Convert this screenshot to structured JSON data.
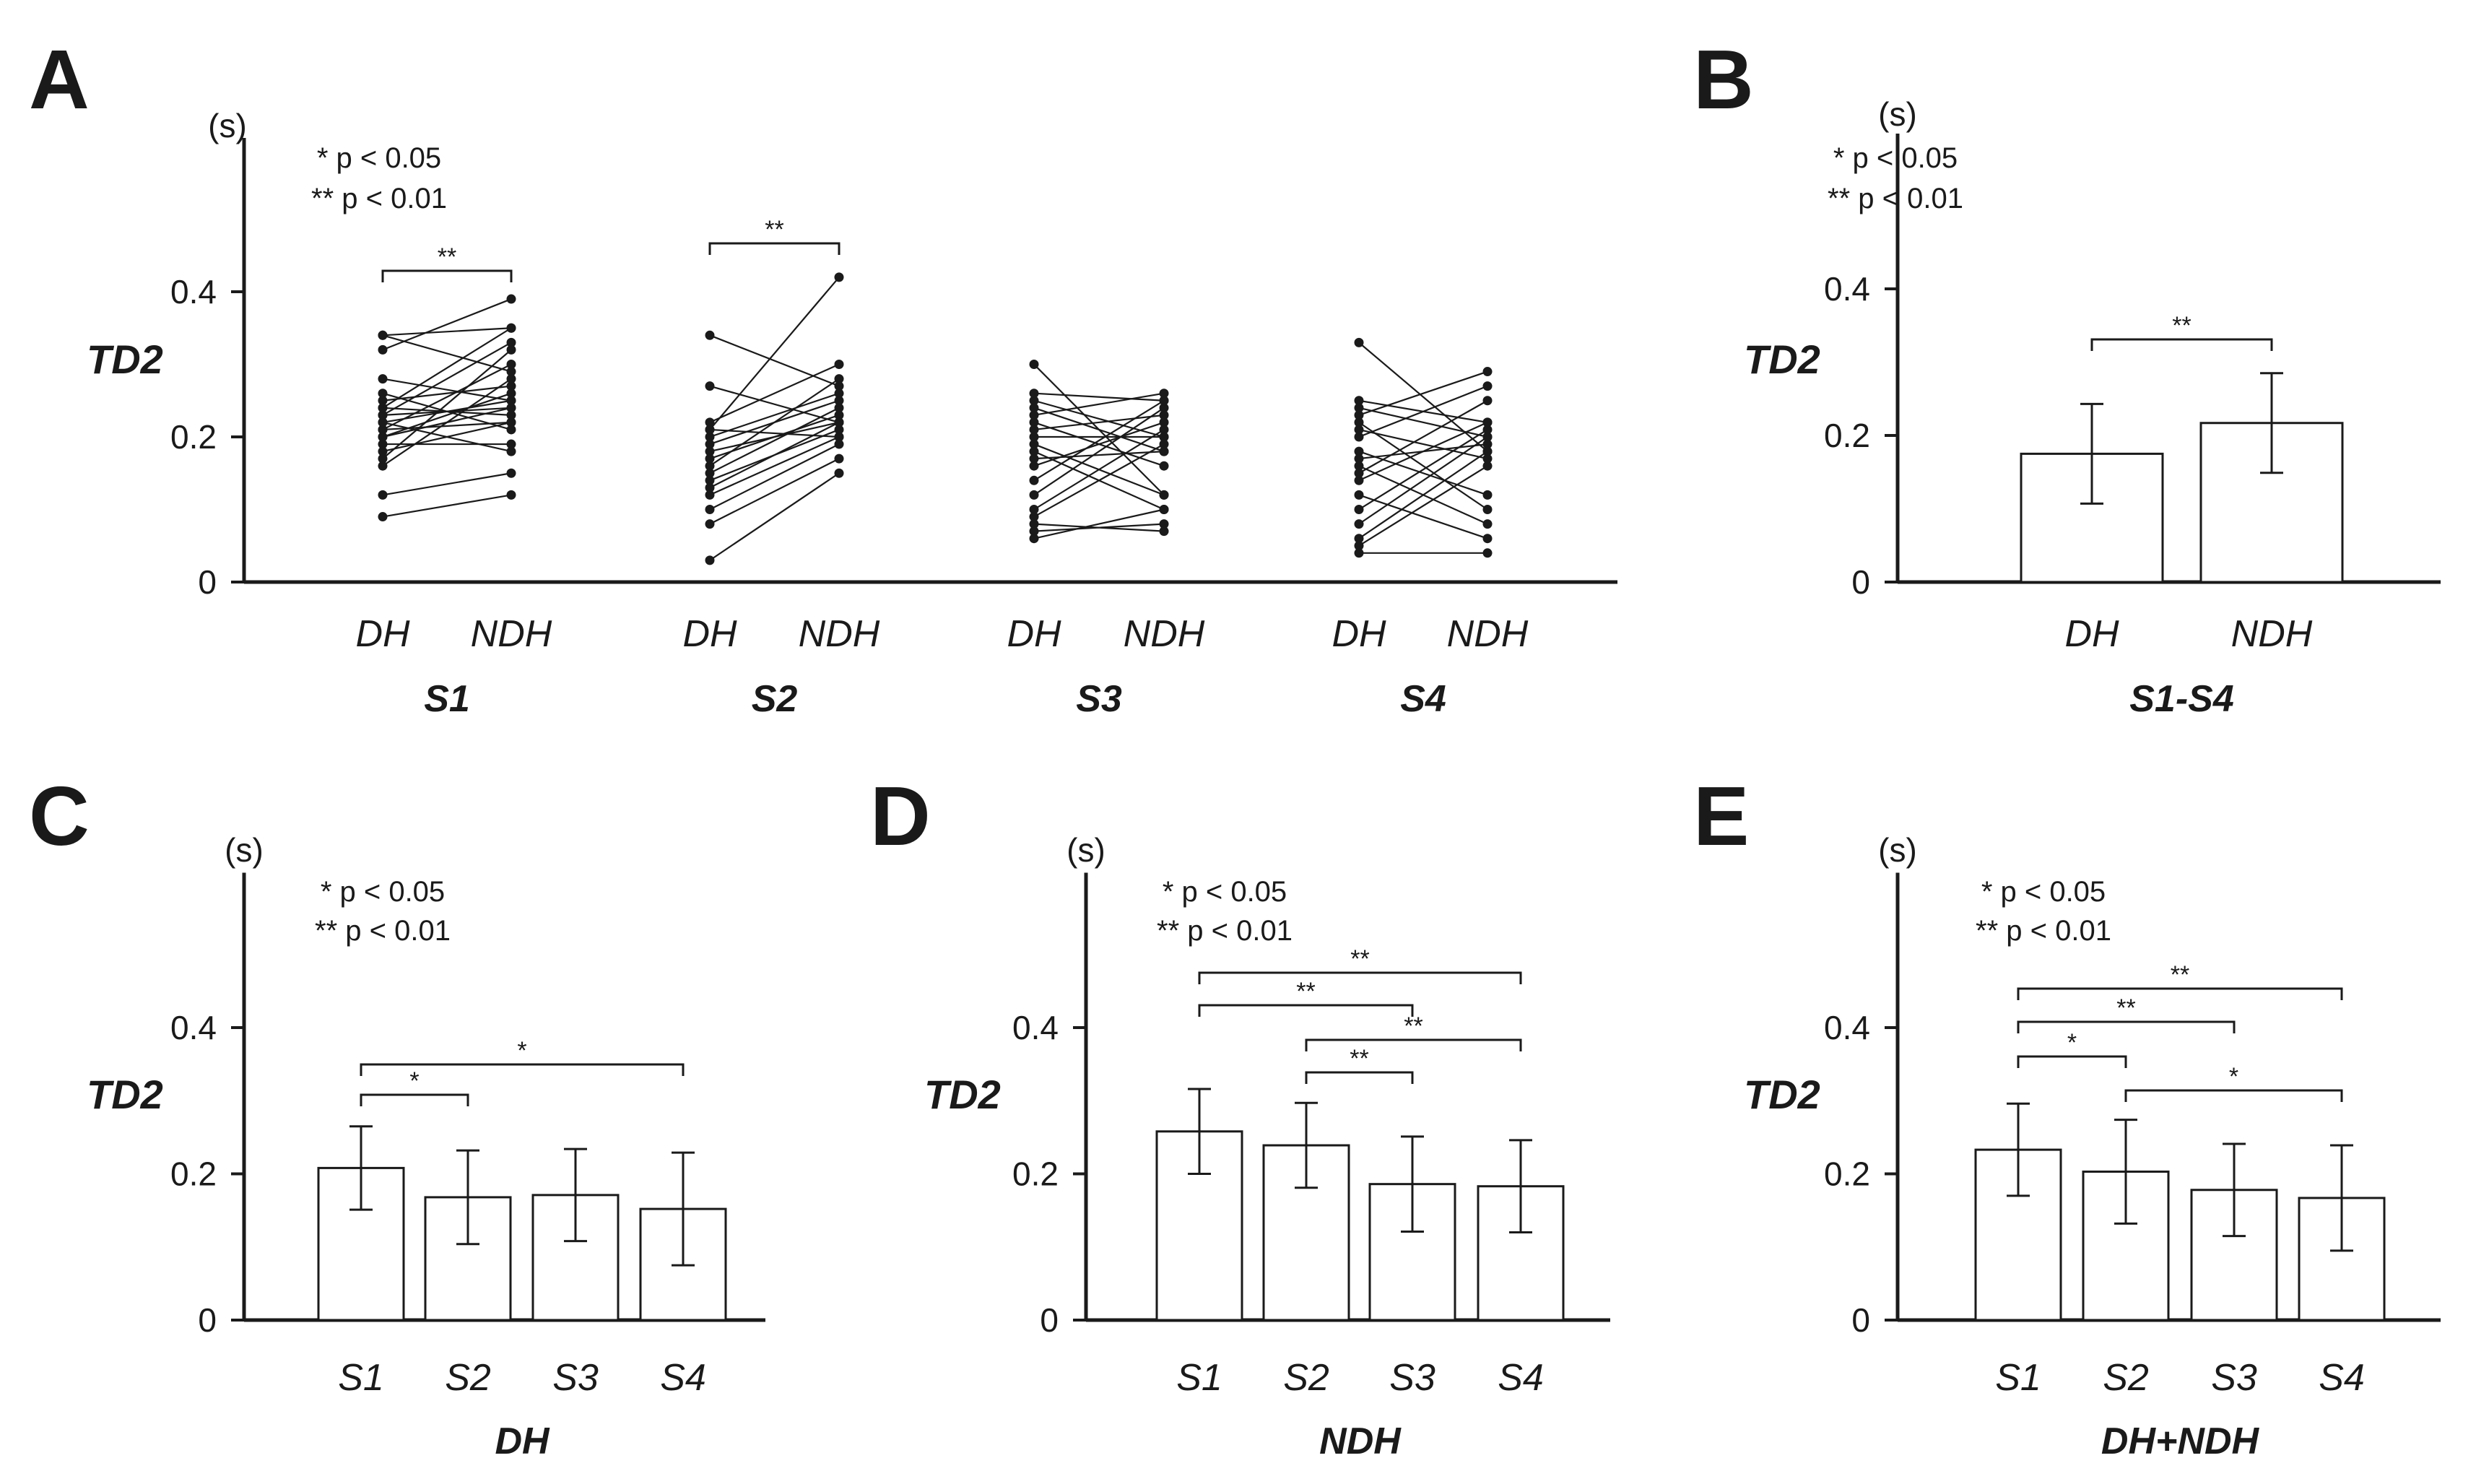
{
  "chart_data": [
    {
      "panel": "A",
      "type": "scatter",
      "subtype": "paired-line plot",
      "ylabel": "TD2",
      "yunit": "(s)",
      "ylim": [
        0,
        0.6
      ],
      "yticks": [
        "0",
        "0.2",
        "0.4"
      ],
      "ytick_values": [
        0,
        0.2,
        0.4
      ],
      "legend": [
        "* p < 0.05",
        "** p < 0.01"
      ],
      "groups": [
        {
          "name": "S1",
          "conditions": [
            "DH",
            "NDH"
          ],
          "pairs": [
            [
              0.09,
              0.12
            ],
            [
              0.12,
              0.15
            ],
            [
              0.16,
              0.28
            ],
            [
              0.17,
              0.32
            ],
            [
              0.18,
              0.22
            ],
            [
              0.19,
              0.19
            ],
            [
              0.2,
              0.24
            ],
            [
              0.2,
              0.26
            ],
            [
              0.21,
              0.22
            ],
            [
              0.21,
              0.3
            ],
            [
              0.22,
              0.25
            ],
            [
              0.22,
              0.18
            ],
            [
              0.23,
              0.24
            ],
            [
              0.23,
              0.33
            ],
            [
              0.24,
              0.23
            ],
            [
              0.24,
              0.35
            ],
            [
              0.25,
              0.27
            ],
            [
              0.26,
              0.21
            ],
            [
              0.28,
              0.25
            ],
            [
              0.32,
              0.39
            ],
            [
              0.34,
              0.29
            ],
            [
              0.34,
              0.35
            ]
          ],
          "significance": [
            {
              "between": [
                "DH",
                "NDH"
              ],
              "label": "**"
            }
          ]
        },
        {
          "name": "S2",
          "conditions": [
            "DH",
            "NDH"
          ],
          "pairs": [
            [
              0.03,
              0.15
            ],
            [
              0.08,
              0.17
            ],
            [
              0.1,
              0.19
            ],
            [
              0.12,
              0.2
            ],
            [
              0.13,
              0.22
            ],
            [
              0.14,
              0.21
            ],
            [
              0.15,
              0.24
            ],
            [
              0.16,
              0.28
            ],
            [
              0.17,
              0.23
            ],
            [
              0.18,
              0.22
            ],
            [
              0.19,
              0.25
            ],
            [
              0.2,
              0.26
            ],
            [
              0.21,
              0.2
            ],
            [
              0.21,
              0.42
            ],
            [
              0.22,
              0.3
            ],
            [
              0.27,
              0.22
            ],
            [
              0.34,
              0.27
            ]
          ],
          "significance": [
            {
              "between": [
                "DH",
                "NDH"
              ],
              "label": "**"
            }
          ]
        },
        {
          "name": "S3",
          "conditions": [
            "DH",
            "NDH"
          ],
          "pairs": [
            [
              0.06,
              0.1
            ],
            [
              0.07,
              0.08
            ],
            [
              0.08,
              0.07
            ],
            [
              0.09,
              0.19
            ],
            [
              0.1,
              0.21
            ],
            [
              0.12,
              0.24
            ],
            [
              0.14,
              0.25
            ],
            [
              0.16,
              0.22
            ],
            [
              0.17,
              0.18
            ],
            [
              0.18,
              0.1
            ],
            [
              0.19,
              0.12
            ],
            [
              0.2,
              0.2
            ],
            [
              0.21,
              0.23
            ],
            [
              0.22,
              0.16
            ],
            [
              0.23,
              0.26
            ],
            [
              0.24,
              0.18
            ],
            [
              0.25,
              0.2
            ],
            [
              0.26,
              0.25
            ],
            [
              0.3,
              0.12
            ]
          ],
          "significance": []
        },
        {
          "name": "S4",
          "conditions": [
            "DH",
            "NDH"
          ],
          "pairs": [
            [
              0.04,
              0.04
            ],
            [
              0.05,
              0.16
            ],
            [
              0.06,
              0.18
            ],
            [
              0.08,
              0.2
            ],
            [
              0.1,
              0.21
            ],
            [
              0.12,
              0.06
            ],
            [
              0.14,
              0.22
            ],
            [
              0.15,
              0.25
            ],
            [
              0.16,
              0.08
            ],
            [
              0.17,
              0.19
            ],
            [
              0.18,
              0.12
            ],
            [
              0.2,
              0.27
            ],
            [
              0.21,
              0.17
            ],
            [
              0.22,
              0.1
            ],
            [
              0.23,
              0.29
            ],
            [
              0.24,
              0.2
            ],
            [
              0.25,
              0.22
            ],
            [
              0.33,
              0.18
            ]
          ],
          "significance": []
        }
      ]
    },
    {
      "panel": "B",
      "type": "bar",
      "title": "S1-S4",
      "categories": [
        "DH",
        "NDH"
      ],
      "values": [
        0.175,
        0.217
      ],
      "errors": [
        0.068,
        0.068
      ],
      "ylabel": "TD2",
      "yunit": "(s)",
      "ylim": [
        0,
        0.6
      ],
      "yticks": [
        "0",
        "0.2",
        "0.4"
      ],
      "ytick_values": [
        0,
        0.2,
        0.4
      ],
      "legend": [
        "* p < 0.05",
        "** p < 0.01"
      ],
      "significance": [
        {
          "between": [
            "DH",
            "NDH"
          ],
          "label": "**"
        }
      ]
    },
    {
      "panel": "C",
      "type": "bar",
      "title": "DH",
      "categories": [
        "S1",
        "S2",
        "S3",
        "S4"
      ],
      "values": [
        0.208,
        0.168,
        0.171,
        0.152
      ],
      "errors": [
        0.057,
        0.064,
        0.063,
        0.077
      ],
      "ylabel": "TD2",
      "yunit": "(s)",
      "ylim": [
        0,
        0.6
      ],
      "yticks": [
        "0",
        "0.2",
        "0.4"
      ],
      "ytick_values": [
        0,
        0.2,
        0.4
      ],
      "legend": [
        "* p < 0.05",
        "** p < 0.01"
      ],
      "significance": [
        {
          "between": [
            "S1",
            "S2"
          ],
          "label": "*"
        },
        {
          "between": [
            "S1",
            "S4"
          ],
          "label": "*"
        }
      ]
    },
    {
      "panel": "D",
      "type": "bar",
      "title": "NDH",
      "categories": [
        "S1",
        "S2",
        "S3",
        "S4"
      ],
      "values": [
        0.258,
        0.239,
        0.186,
        0.183
      ],
      "errors": [
        0.058,
        0.058,
        0.065,
        0.063
      ],
      "ylabel": "TD2",
      "yunit": "(s)",
      "ylim": [
        0,
        0.6
      ],
      "yticks": [
        "0",
        "0.2",
        "0.4"
      ],
      "ytick_values": [
        0,
        0.2,
        0.4
      ],
      "legend": [
        "* p < 0.05",
        "** p < 0.01"
      ],
      "significance": [
        {
          "between": [
            "S2",
            "S3"
          ],
          "label": "**"
        },
        {
          "between": [
            "S2",
            "S4"
          ],
          "label": "**"
        },
        {
          "between": [
            "S1",
            "S3"
          ],
          "label": "**"
        },
        {
          "between": [
            "S1",
            "S4"
          ],
          "label": "**"
        }
      ]
    },
    {
      "panel": "E",
      "type": "bar",
      "title": "DH+NDH",
      "categories": [
        "S1",
        "S2",
        "S3",
        "S4"
      ],
      "values": [
        0.233,
        0.203,
        0.178,
        0.167
      ],
      "errors": [
        0.063,
        0.071,
        0.063,
        0.072
      ],
      "ylabel": "TD2",
      "yunit": "(s)",
      "ylim": [
        0,
        0.6
      ],
      "yticks": [
        "0",
        "0.2",
        "0.4"
      ],
      "ytick_values": [
        0,
        0.2,
        0.4
      ],
      "legend": [
        "* p < 0.05",
        "** p < 0.01"
      ],
      "significance": [
        {
          "between": [
            "S1",
            "S2"
          ],
          "label": "*"
        },
        {
          "between": [
            "S2",
            "S4"
          ],
          "label": "*"
        },
        {
          "between": [
            "S1",
            "S3"
          ],
          "label": "**"
        },
        {
          "between": [
            "S1",
            "S4"
          ],
          "label": "**"
        }
      ]
    }
  ]
}
